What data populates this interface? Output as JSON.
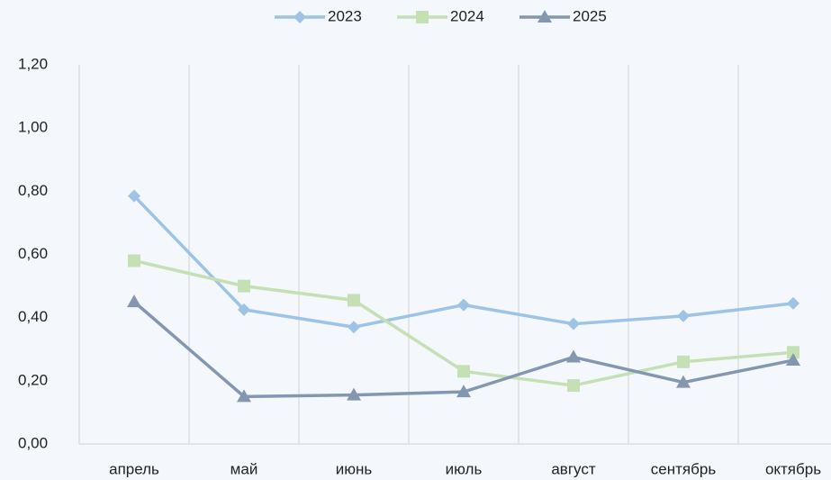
{
  "chart_data": {
    "type": "line",
    "categories": [
      "апрель",
      "май",
      "июнь",
      "июль",
      "август",
      "сентябрь",
      "октябрь"
    ],
    "series": [
      {
        "name": "2023",
        "color": "#9dc3e6",
        "marker": "diamond",
        "values": [
          0.785,
          0.425,
          0.37,
          0.44,
          0.38,
          0.405,
          0.445
        ]
      },
      {
        "name": "2024",
        "color": "#c5e0b4",
        "marker": "square",
        "values": [
          0.58,
          0.5,
          0.455,
          0.23,
          0.185,
          0.26,
          0.29
        ]
      },
      {
        "name": "2025",
        "color": "#8497b0",
        "marker": "triangle",
        "values": [
          0.45,
          0.15,
          0.155,
          0.165,
          0.275,
          0.195,
          0.265
        ]
      }
    ],
    "ylim": [
      0,
      1.2
    ],
    "yticks": [
      {
        "value": 0,
        "label": "0,00"
      },
      {
        "value": 0.2,
        "label": "0,20"
      },
      {
        "value": 0.4,
        "label": "0,40"
      },
      {
        "value": 0.6,
        "label": "0,60"
      },
      {
        "value": 0.8,
        "label": "0,80"
      },
      {
        "value": 1.0,
        "label": "1,00"
      },
      {
        "value": 1.2,
        "label": "1,20"
      }
    ],
    "legend": "top"
  }
}
